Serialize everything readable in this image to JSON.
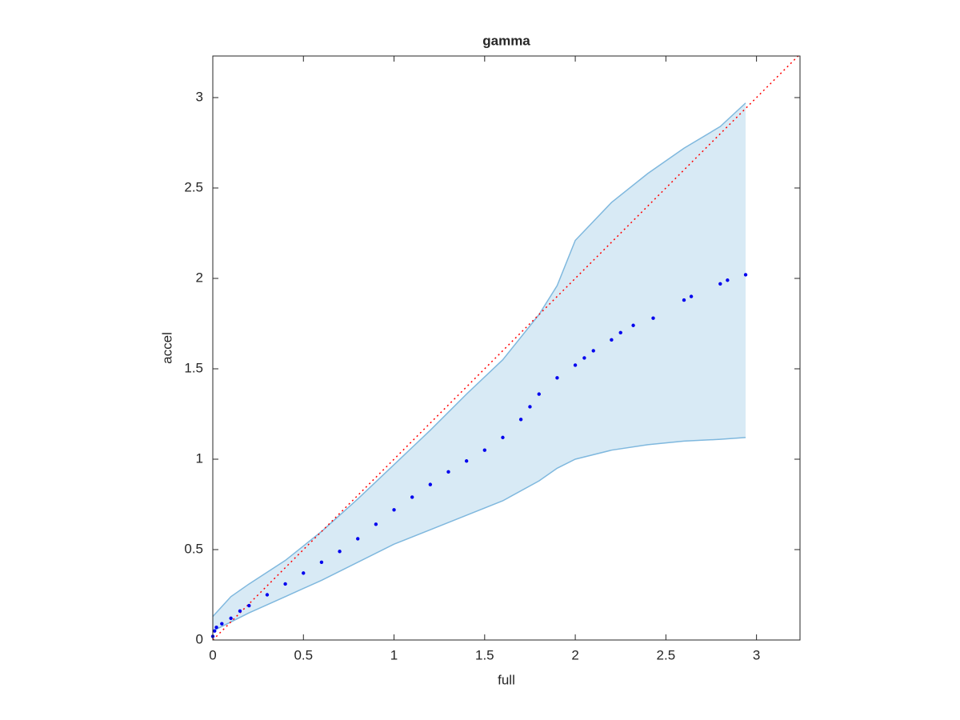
{
  "chart_data": {
    "type": "scatter",
    "title": "gamma",
    "xlabel": "full",
    "ylabel": "accel",
    "xlim": [
      0,
      3.24
    ],
    "ylim": [
      0,
      3.23
    ],
    "xticks": [
      0,
      0.5,
      1,
      1.5,
      2,
      2.5,
      3
    ],
    "yticks": [
      0,
      0.5,
      1,
      1.5,
      2,
      2.5,
      3
    ],
    "band": {
      "color": "#7fb8de",
      "x": [
        0,
        0.1,
        0.2,
        0.4,
        0.6,
        0.8,
        1.0,
        1.2,
        1.4,
        1.6,
        1.8,
        1.9,
        2.0,
        2.2,
        2.4,
        2.6,
        2.8,
        2.94
      ],
      "upper": [
        0.13,
        0.24,
        0.31,
        0.44,
        0.6,
        0.78,
        0.97,
        1.16,
        1.36,
        1.55,
        1.8,
        1.96,
        2.21,
        2.42,
        2.58,
        2.72,
        2.84,
        2.97
      ],
      "lower": [
        0.05,
        0.1,
        0.15,
        0.24,
        0.33,
        0.43,
        0.53,
        0.61,
        0.69,
        0.77,
        0.88,
        0.95,
        1.0,
        1.05,
        1.08,
        1.1,
        1.11,
        1.12
      ]
    },
    "reference_line": {
      "color": "#ff0000",
      "x": [
        0,
        3.24
      ],
      "y": [
        0,
        3.24
      ]
    },
    "points": {
      "color": "#0000ee",
      "x": [
        0,
        0.01,
        0.02,
        0.05,
        0.1,
        0.15,
        0.2,
        0.3,
        0.4,
        0.5,
        0.6,
        0.7,
        0.8,
        0.9,
        1.0,
        1.1,
        1.2,
        1.3,
        1.4,
        1.5,
        1.6,
        1.7,
        1.75,
        1.8,
        1.9,
        2.0,
        2.05,
        2.1,
        2.2,
        2.25,
        2.32,
        2.43,
        2.6,
        2.64,
        2.8,
        2.84,
        2.94
      ],
      "y": [
        0.02,
        0.05,
        0.07,
        0.09,
        0.12,
        0.16,
        0.19,
        0.25,
        0.31,
        0.37,
        0.43,
        0.49,
        0.56,
        0.64,
        0.72,
        0.79,
        0.86,
        0.93,
        0.99,
        1.05,
        1.12,
        1.22,
        1.29,
        1.36,
        1.45,
        1.52,
        1.56,
        1.6,
        1.66,
        1.7,
        1.74,
        1.78,
        1.88,
        1.9,
        1.97,
        1.99,
        2.02
      ]
    }
  }
}
